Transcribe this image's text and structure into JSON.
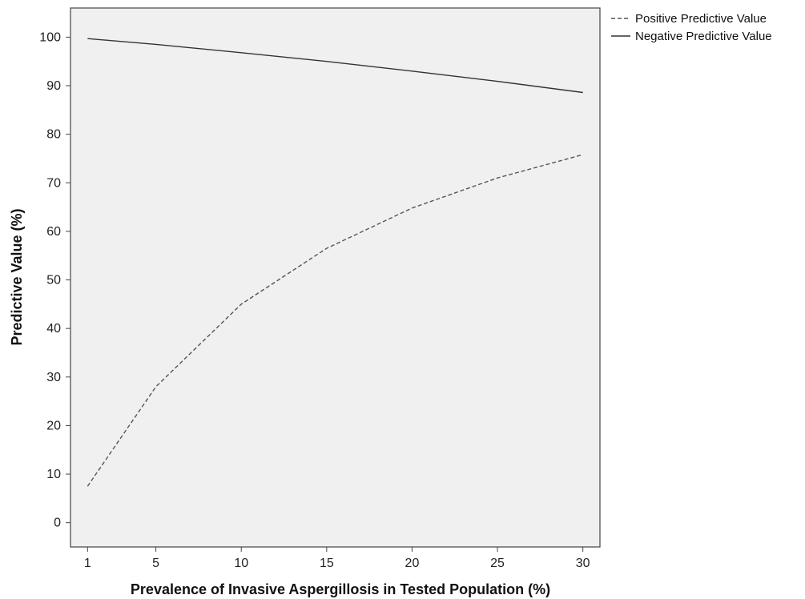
{
  "chart_data": {
    "type": "line",
    "xlabel": "Prevalence of Invasive Aspergillosis in Tested Population (%)",
    "ylabel": "Predictive Value (%)",
    "x": [
      1,
      5,
      10,
      15,
      20,
      25,
      30
    ],
    "xlim": [
      0,
      31
    ],
    "ylim": [
      -5,
      106
    ],
    "xticks": [
      "1",
      "5",
      "10",
      "15",
      "20",
      "25",
      "30"
    ],
    "yticks": [
      "0",
      "10",
      "20",
      "30",
      "40",
      "50",
      "60",
      "70",
      "80",
      "90",
      "100"
    ],
    "grid": false,
    "legend_position": "outside-top-right",
    "series": [
      {
        "name": "Positive Predictive Value",
        "style": "dashed",
        "color": "#555555",
        "values": [
          7.5,
          28,
          45,
          56.5,
          64.8,
          71,
          75.8
        ]
      },
      {
        "name": "Negative Predictive Value",
        "style": "solid",
        "color": "#333333",
        "values": [
          99.7,
          98.5,
          96.8,
          95,
          93,
          90.9,
          88.6
        ]
      }
    ],
    "colors": {
      "plot_background": "#f0f0f0",
      "frame": "#444444"
    }
  }
}
